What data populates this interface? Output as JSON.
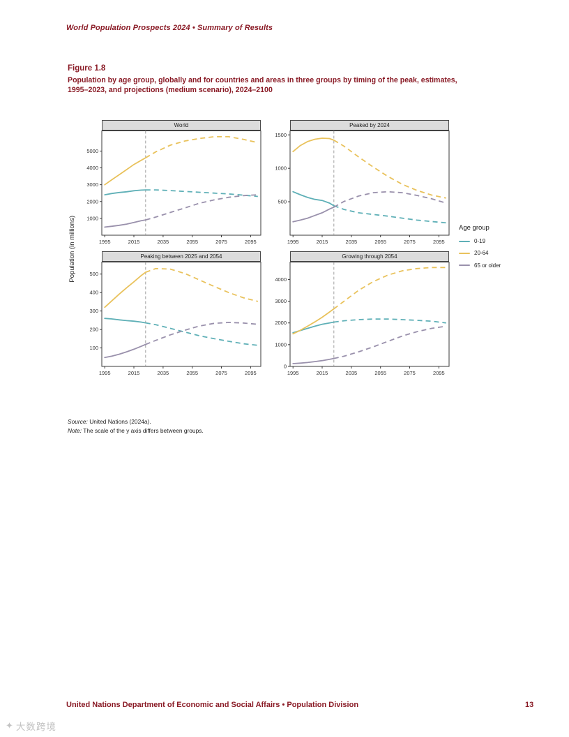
{
  "page": {
    "running_head": "World Population Prospects 2024 • Summary of Results",
    "footer": "United Nations Department of Economic and Social Affairs • Population Division",
    "page_number": "13",
    "watermark": "大数跨境",
    "accent_color": "#8a1b26"
  },
  "figure": {
    "label": "Figure 1.8",
    "title_line1": "Population by age group, globally and for countries and areas in three groups by timing of the peak, estimates,",
    "title_line2": "1995–2023, and projections (medium scenario), 2024–2100",
    "source_label": "Source:",
    "source_text": " United Nations (2024a).",
    "note_label": "Note:",
    "note_text": " The scale of the y axis differs between groups."
  },
  "chart_data": {
    "type": "line",
    "ylabel": "Population (in millions)",
    "x": [
      1995,
      2000,
      2005,
      2010,
      2015,
      2020,
      2023,
      2030,
      2040,
      2050,
      2060,
      2070,
      2080,
      2090,
      2100
    ],
    "x_ticks": [
      1995,
      2015,
      2035,
      2055,
      2075,
      2095
    ],
    "projection_start": 2023,
    "vline_color": "#a0a0a0",
    "legend": {
      "title": "Age group",
      "entries": [
        {
          "label": "0-19",
          "color": "#5fb0b7"
        },
        {
          "label": "20-64",
          "color": "#e9c25c"
        },
        {
          "label": "65 or older",
          "color": "#9a91ac"
        }
      ]
    },
    "panels": [
      {
        "title": "World",
        "ylim": [
          0,
          6200
        ],
        "yticks": [
          1000,
          2000,
          3000,
          4000,
          5000
        ],
        "series": [
          {
            "name": "0-19",
            "values": [
              2400,
              2480,
              2540,
              2580,
              2640,
              2680,
              2690,
              2690,
              2650,
              2600,
              2550,
              2500,
              2450,
              2380,
              2300
            ]
          },
          {
            "name": "20-64",
            "values": [
              3000,
              3300,
              3600,
              3900,
              4200,
              4450,
              4600,
              4950,
              5350,
              5600,
              5750,
              5850,
              5850,
              5700,
              5500
            ]
          },
          {
            "name": "65 or older",
            "values": [
              480,
              530,
              590,
              660,
              760,
              860,
              910,
              1080,
              1350,
              1620,
              1900,
              2100,
              2250,
              2350,
              2400
            ]
          }
        ]
      },
      {
        "title": "Peaked by 2024",
        "ylim": [
          0,
          1560
        ],
        "yticks": [
          500,
          1000,
          1500
        ],
        "series": [
          {
            "name": "0-19",
            "values": [
              650,
              605,
              565,
              535,
              520,
              480,
              440,
              385,
              335,
              310,
              285,
              255,
              225,
              205,
              185
            ]
          },
          {
            "name": "20-64",
            "values": [
              1250,
              1340,
              1400,
              1435,
              1450,
              1445,
              1420,
              1330,
              1170,
              1020,
              880,
              760,
              670,
              600,
              555
            ]
          },
          {
            "name": "65 or older",
            "values": [
              200,
              225,
              255,
              295,
              335,
              390,
              420,
              505,
              585,
              635,
              650,
              635,
              595,
              545,
              480
            ]
          }
        ]
      },
      {
        "title": "Peaking between 2025 and 2054",
        "ylim": [
          0,
          565
        ],
        "yticks": [
          100,
          200,
          300,
          400,
          500
        ],
        "series": [
          {
            "name": "0-19",
            "values": [
              260,
              257,
              252,
              248,
              245,
              240,
              236,
              226,
              206,
              186,
              166,
              150,
              136,
              123,
              114
            ]
          },
          {
            "name": "20-64",
            "values": [
              320,
              356,
              392,
              426,
              458,
              492,
              510,
              530,
              527,
              503,
              468,
              433,
              400,
              372,
              352
            ]
          },
          {
            "name": "65 or older",
            "values": [
              48,
              56,
              66,
              79,
              93,
              109,
              119,
              141,
              171,
              196,
              219,
              233,
              238,
              235,
              228
            ]
          }
        ]
      },
      {
        "title": "Growing through 2054",
        "ylim": [
          0,
          4800
        ],
        "yticks": [
          0,
          1000,
          2000,
          3000,
          4000
        ],
        "series": [
          {
            "name": "0-19",
            "values": [
              1550,
              1650,
              1750,
              1850,
              1940,
              2000,
              2040,
              2100,
              2150,
              2180,
              2180,
              2150,
              2120,
              2080,
              2000
            ]
          },
          {
            "name": "20-64",
            "values": [
              1500,
              1660,
              1850,
              2050,
              2260,
              2500,
              2650,
              3000,
              3500,
              3900,
              4200,
              4400,
              4500,
              4550,
              4550
            ]
          },
          {
            "name": "65 or older",
            "values": [
              130,
              152,
              180,
              220,
              268,
              325,
              365,
              470,
              670,
              900,
              1150,
              1400,
              1600,
              1750,
              1850
            ]
          }
        ]
      }
    ]
  }
}
